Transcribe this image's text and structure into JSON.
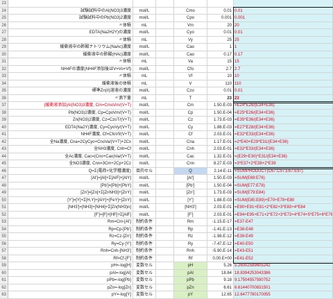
{
  "rows": [
    {
      "n": "23",
      "a": "",
      "b": "",
      "c": "",
      "d": "",
      "e": "",
      "f": ""
    },
    {
      "n": "24",
      "a": "試験試料中のAl(NO3)3濃度",
      "b": "mol/L",
      "c": "",
      "d": "Cmo",
      "e": "0.01",
      "f": "0.01"
    },
    {
      "n": "25",
      "a": "試験試料中のPb(NO3)2濃度",
      "b": "mol/L",
      "c": "",
      "d": "Cpo",
      "e": "0.001",
      "f": "0.001"
    },
    {
      "n": "26",
      "a": "〃体積",
      "b": "mL",
      "c": "",
      "d": "Vm",
      "e": "20",
      "f": "20"
    },
    {
      "n": "27",
      "a": "EDTA(Na2H2Y)の濃度",
      "b": "mol/L",
      "c": "",
      "d": "Cyo",
      "e": "0.01",
      "f": "0.01"
    },
    {
      "n": "28",
      "a": "〃体積",
      "b": "mL",
      "c": "",
      "d": "Vy",
      "e": "25",
      "f": "25"
    },
    {
      "n": "29",
      "a": "緩衝液中の酢酸ナトリウム(NaAc)濃度",
      "b": "mol/L",
      "c": "",
      "d": "Cao",
      "e": "1",
      "f": "1"
    },
    {
      "n": "30",
      "a": "緩衝液中の酢酸(HAc)濃度",
      "b": "mol/L",
      "c": "",
      "d": "Cao",
      "e": "0.17",
      "f": "0.17"
    },
    {
      "n": "31",
      "a": "〃体積",
      "b": "mL",
      "c": "",
      "d": "Va",
      "e": "15",
      "f": "15"
    },
    {
      "n": "32",
      "a": "NH4Fの濃度(NH4F添加後はV=Vo+Vf)",
      "b": "mol/L",
      "c": "",
      "d": "Cfo",
      "e": "2.7",
      "f": "2.7"
    },
    {
      "n": "33",
      "a": "〃体積",
      "b": "mL",
      "c": "",
      "d": "Vf",
      "e": "10",
      "f": "10"
    },
    {
      "n": "34",
      "a": "緩衝液後の体積",
      "b": "mL",
      "c": "",
      "d": "V",
      "e": "110",
      "f": "110"
    },
    {
      "n": "35",
      "a": "標準Zn(II)溶液の濃度",
      "b": "mol/L",
      "c": "",
      "d": "Czo",
      "e": "0.01",
      "f": "0.01"
    },
    {
      "n": "36",
      "a": "〃滴下量",
      "b": "mL",
      "c": "",
      "d": "T",
      "e": "23",
      "f": "23",
      "bold": true
    },
    {
      "n": "37",
      "a": "(緩衝液添加)Al(NO3)3濃度, Cm=CmoVm/(V+T)",
      "b": "mol/L",
      "c": "",
      "d": "Cm",
      "e": "1.50.E-03",
      "f": "=E24*E26/(E34+E36)"
    },
    {
      "n": "38",
      "a": "Pb(NO3)2濃度, Cp=CpoVm/(V+T)",
      "b": "mol/L",
      "c": "",
      "d": "Cp",
      "e": "1.50.E-04",
      "f": "=E25*E26/(E34+E36)"
    },
    {
      "n": "39",
      "a": "Zn(NO3)2濃度, Cz=CzoT/(V+T)",
      "b": "mol/L",
      "c": "",
      "d": "Cz",
      "e": "1.73.E-03",
      "f": "=E35*E36/(E34+E36)"
    },
    {
      "n": "40",
      "a": "EDTA(Na2Y)濃度, Cy=CyoVy/(V+T)",
      "b": "mol/L",
      "c": "",
      "d": "Cy",
      "e": "1.88.E-03",
      "f": "=E27*E28/(E34+E36)"
    },
    {
      "n": "41",
      "a": "NH4F濃度, Cf=CfoVf/(V+T)",
      "b": "mol/L",
      "c": "",
      "d": "Cf",
      "e": "2.03.E-01",
      "f": "=E32*E33/(E34+E36)"
    },
    {
      "n": "42",
      "a": "全Na濃度, Cna=2CyCyo+CnoVa/(V+T)+2Cx",
      "b": "mol/L",
      "c": "",
      "d": "Cna",
      "e": "1.17.E-01",
      "f": "=2*E40+E29*E31/(E34+E36)"
    },
    {
      "n": "43",
      "a": "全NH3濃度, Cnh=Cf",
      "b": "mol/L",
      "c": "",
      "d": "Cnh",
      "e": "2.03.E-01",
      "f": "=E32*E33/(E34+E36)"
    },
    {
      "n": "44",
      "a": "全Ac濃度, Cac=(Cno+Cao)Va/(V+T)",
      "b": "mol/L",
      "c": "",
      "d": "Cac",
      "e": "1.32.E-01",
      "f": "=(E29+E30)*E31/(E34+E36)"
    },
    {
      "n": "45",
      "a": "全NO3濃度, Cnn=3Cm+2Cp+2Cz",
      "b": "mol/L",
      "c": "",
      "d": "Cnn",
      "e": "8.27.E-03",
      "f": "=3*E37+2*E38+2*E39"
    },
    {
      "n": "46",
      "a": "Q=Σ(電荷×化学種濃度)",
      "b": "目的セル",
      "c": "",
      "d": "Q",
      "e": "2.14.E-11",
      "f": "=SUMPRODUCT(C67:C97,E67:E97)",
      "pd": true
    },
    {
      "n": "47",
      "a": "[Al']=[Al]+Σ[AlF]+[AlY]",
      "b": "mol/L",
      "c": "",
      "d": "[Al']",
      "e": "1.50.E-03",
      "f": "=SUM(E69:E76)"
    },
    {
      "n": "48",
      "a": "[Pb']=[Pb]+[PbY]",
      "b": "mol/L",
      "c": "",
      "d": "[Pb']",
      "e": "1.50.E-04",
      "f": "=SUM(E77:E78)"
    },
    {
      "n": "49",
      "a": "[Zn']=[Zn]+Σ[ZnNH3]+[ZnY]",
      "b": "mol/L",
      "c": "",
      "d": "[Zn']",
      "e": "1.73.E-03",
      "f": "=SUM(E79:E84)"
    },
    {
      "n": "50",
      "a": "[Y']=[Y]+Σ[H,Y]+[AlY]+[FeY]+[ZnY]",
      "b": "mol/L",
      "c": "",
      "d": "[Y']",
      "e": "1.88.E-03",
      "f": "=SUM(E85:E89)+E70+E78+E80"
    },
    {
      "n": "51",
      "a": "[NH3']=[NH3]+[NH4]+Σ[Zn(NH3)n]",
      "b": "mol/L",
      "c": "",
      "d": "[NH3']",
      "e": "2.03.E-01",
      "f": "=E90+E91+E81+2*E82+3*E83+4*E84"
    },
    {
      "n": "52",
      "a": "[F']=[F]+[HF]+Σ[AlF]",
      "b": "mol/L",
      "c": "",
      "d": "[F']",
      "e": "2.03.E-01",
      "f": "=E94+E95+E71+2*E72+3*E73+4*E74+5*E75+6*E76"
    },
    {
      "n": "53",
      "a": "Rm=Cm-[Al']",
      "b": "制約条件",
      "c": "",
      "d": "Rm",
      "e": "-1.15.E-17",
      "f": "=E37-E47"
    },
    {
      "n": "54",
      "a": "Rp=Cp-[Pb']",
      "b": "制約条件",
      "c": "",
      "d": "Rp",
      "e": "-1.41.E-13",
      "f": "=E38-E48"
    },
    {
      "n": "55",
      "a": "Rz=Cz-[Zn']",
      "b": "制約条件",
      "c": "",
      "d": "Rz",
      "e": "-1.98.E-12",
      "f": "=E39-E49"
    },
    {
      "n": "56",
      "a": "Ry=Cy-[Y']",
      "b": "制約条件",
      "c": "",
      "d": "Ry",
      "e": "-7.47.E-12",
      "f": "=E40-E50"
    },
    {
      "n": "57",
      "a": "Rnh=Cnh-[NH3']",
      "b": "制約条件",
      "c": "",
      "d": "Rnh",
      "e": "-5.90.E-14",
      "f": "=E43-E51"
    },
    {
      "n": "58",
      "a": "Rf=Cf-[F']",
      "b": "制約条件",
      "c": "",
      "d": "Rf",
      "e": "0.00.E+00",
      "f": "=E41-E52"
    },
    {
      "n": "59",
      "a": "pH=-log[H]",
      "b": "変数セル",
      "c": "",
      "d": "pH",
      "e": "5.26",
      "f": "5.26002589605242",
      "g": true
    },
    {
      "n": "60",
      "a": "pAl=-log[Al]",
      "b": "変数セル",
      "c": "",
      "d": "pAl",
      "e": "18.84",
      "f": "18.8394253043386",
      "g": true
    },
    {
      "n": "61",
      "a": "pPb=-log[Pb]",
      "b": "変数セル",
      "c": "",
      "d": "pPb",
      "e": "9.18",
      "f": "9.17504557590752",
      "g": true
    },
    {
      "n": "62",
      "a": "pZn=-log[Zn]",
      "b": "変数セル",
      "c": "",
      "d": "pZn",
      "e": "6.61",
      "f": "6.61440700831501",
      "g": true
    },
    {
      "n": "63",
      "a": "pY=-log[Y]",
      "b": "変数セル",
      "c": "",
      "d": "pY",
      "e": "12.65",
      "f": "12.6477780170055",
      "g": true
    },
    {
      "n": "64",
      "a": "pNH3=-log[NH3]",
      "b": "変数セル",
      "c": "",
      "d": "pNH3",
      "e": "4.69",
      "f": "4.69250550229614",
      "g": true
    },
    {
      "n": "65",
      "a": "pF=-log[F]",
      "b": "変数セル",
      "c": "",
      "d": "pF",
      "e": "0.71",
      "f": "0.711404919687269",
      "g": true
    }
  ]
}
